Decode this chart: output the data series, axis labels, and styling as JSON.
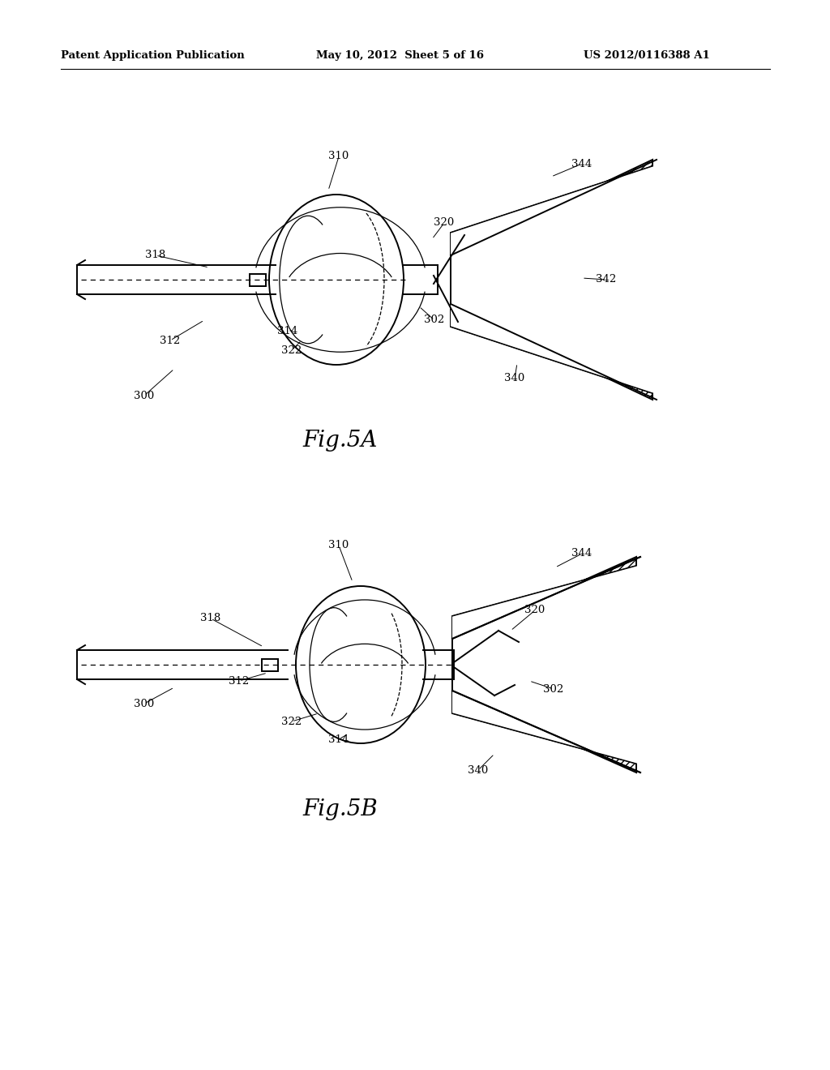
{
  "bg_color": "#ffffff",
  "title_left": "Patent Application Publication",
  "title_mid": "May 10, 2012  Sheet 5 of 16",
  "title_right": "US 2012/0116388 A1",
  "fig5a_label": "Fig.5A",
  "fig5b_label": "Fig.5B"
}
